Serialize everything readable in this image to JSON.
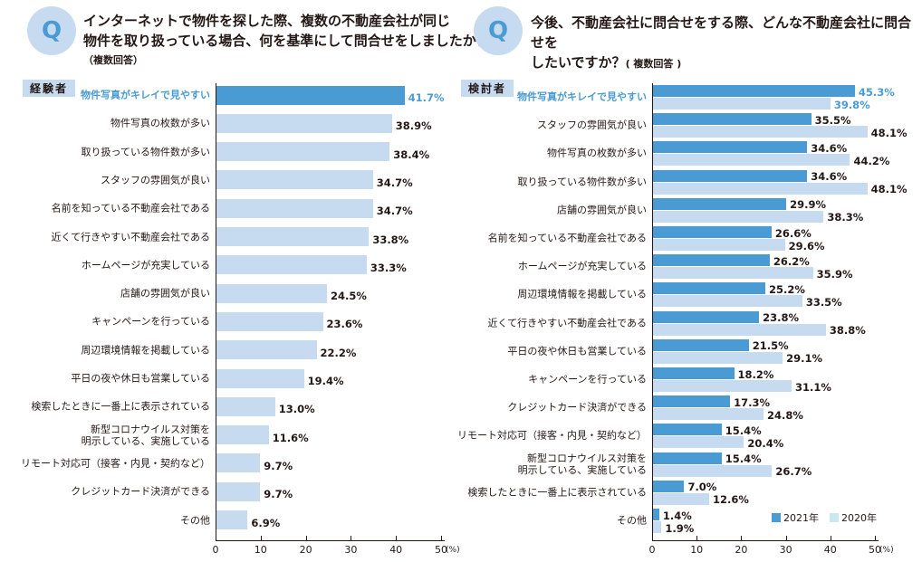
{
  "colors": {
    "primary": "#4a9bd4",
    "secondary": "#c7dbf0",
    "legend_2020": "#c8e8f2",
    "highlight_text": "#4a9bd4"
  },
  "left": {
    "q_mark": "Q",
    "question": "インターネットで物件を探した際、複数の不動産会社が同じ\n物件を取り扱っている場合、何を基準にして問合せをしましたか？",
    "note": "（複数回答）",
    "tag": "経験者"
  },
  "right": {
    "q_mark": "Q",
    "question": "今後、不動産会社に問合せをする際、どんな不動産会社に問合せを\nしたいですか？",
    "note": "( 複数回答 )",
    "tag": "検討者"
  },
  "chart_data": [
    {
      "type": "bar",
      "orientation": "horizontal",
      "xlim": [
        0,
        50
      ],
      "xticks": [
        "0",
        "10",
        "20",
        "30",
        "40",
        "50"
      ],
      "unit": "(%)",
      "categories": [
        "物件写真がキレイで見やすい",
        "物件写真の枚数が多い",
        "取り扱っている物件数が多い",
        "スタッフの雰囲気が良い",
        "名前を知っている不動産会社である",
        "近くて行きやすい不動産会社である",
        "ホームページが充実している",
        "店舗の雰囲気が良い",
        "キャンペーンを行っている",
        "周辺環境情報を掲載している",
        "平日の夜や休日も営業している",
        "検索したときに一番上に表示されている",
        "新型コロナウイルス対策を\n明示している、実施している",
        "リモート対応可（接客・内見・契約など）",
        "クレジットカード決済ができる",
        "その他"
      ],
      "series": [
        {
          "values": [
            41.7,
            38.9,
            38.4,
            34.7,
            34.7,
            33.8,
            33.3,
            24.5,
            23.6,
            22.2,
            19.4,
            13.0,
            11.6,
            9.7,
            9.7,
            6.9
          ],
          "labels": [
            "41.7%",
            "38.9%",
            "38.4%",
            "34.7%",
            "34.7%",
            "33.8%",
            "33.3%",
            "24.5%",
            "23.6%",
            "22.2%",
            "19.4%",
            "13.0%",
            "11.6%",
            "9.7%",
            "9.7%",
            "6.9%"
          ]
        }
      ],
      "highlight_index": 0
    },
    {
      "type": "bar",
      "orientation": "horizontal",
      "xlim": [
        0,
        50
      ],
      "xticks": [
        "0",
        "10",
        "20",
        "30",
        "40",
        "50"
      ],
      "unit": "(%)",
      "legend_position": "bottom-right",
      "categories": [
        "物件写真がキレイで見やすい",
        "スタッフの雰囲気が良い",
        "物件写真の枚数が多い",
        "取り扱っている物件数が多い",
        "店舗の雰囲気が良い",
        "名前を知っている不動産会社である",
        "ホームページが充実している",
        "周辺環境情報を掲載している",
        "近くて行きやすい不動産会社である",
        "平日の夜や休日も営業している",
        "キャンペーンを行っている",
        "クレジットカード決済ができる",
        "リモート対応可（接客・内見・契約など）",
        "新型コロナウイルス対策を\n明示している、実施している",
        "検索したときに一番上に表示されている",
        "その他"
      ],
      "series": [
        {
          "name": "2021年",
          "values": [
            45.3,
            35.5,
            34.6,
            34.6,
            29.9,
            26.6,
            26.2,
            25.2,
            23.8,
            21.5,
            18.2,
            17.3,
            15.4,
            15.4,
            7.0,
            1.4
          ],
          "labels": [
            "45.3%",
            "35.5%",
            "34.6%",
            "34.6%",
            "29.9%",
            "26.6%",
            "26.2%",
            "25.2%",
            "23.8%",
            "21.5%",
            "18.2%",
            "17.3%",
            "15.4%",
            "15.4%",
            "7.0%",
            "1.4%"
          ]
        },
        {
          "name": "2020年",
          "values": [
            39.8,
            48.1,
            44.2,
            48.1,
            38.3,
            29.6,
            35.9,
            33.5,
            38.8,
            29.1,
            31.1,
            24.8,
            20.4,
            26.7,
            12.6,
            1.9
          ],
          "labels": [
            "39.8%",
            "48.1%",
            "44.2%",
            "48.1%",
            "38.3%",
            "29.6%",
            "35.9%",
            "33.5%",
            "38.8%",
            "29.1%",
            "31.1%",
            "24.8%",
            "20.4%",
            "26.7%",
            "12.6%",
            "1.9%"
          ]
        }
      ],
      "highlight_index": 0
    }
  ]
}
